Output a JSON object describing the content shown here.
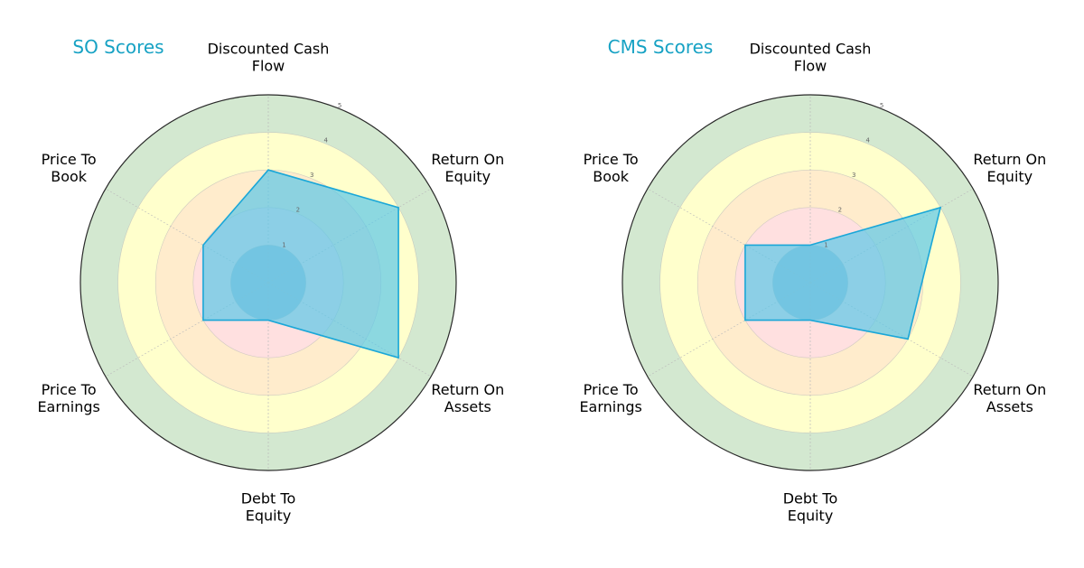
{
  "chart_data": [
    {
      "type": "radar",
      "title": "SO Scores",
      "axes": [
        "Discounted Cash Flow",
        "Return On Equity",
        "Return On Assets",
        "Debt To Equity",
        "Price To Earnings",
        "Price To Book"
      ],
      "axis_label_lines": [
        [
          "Discounted Cash",
          "Flow"
        ],
        [
          "Return On",
          "Equity"
        ],
        [
          "Return On",
          "Assets"
        ],
        [
          "Debt To",
          "Equity"
        ],
        [
          "Price To",
          "Earnings"
        ],
        [
          "Price To",
          "Book"
        ]
      ],
      "values": [
        3,
        4,
        4,
        1,
        2,
        2
      ],
      "rlim": [
        0,
        5
      ],
      "ticks": [
        "1",
        "2",
        "3",
        "4",
        "5"
      ]
    },
    {
      "type": "radar",
      "title": "CMS Scores",
      "axes": [
        "Discounted Cash Flow",
        "Return On Equity",
        "Return On Assets",
        "Debt To Equity",
        "Price To Earnings",
        "Price To Book"
      ],
      "axis_label_lines": [
        [
          "Discounted Cash",
          "Flow"
        ],
        [
          "Return On",
          "Equity"
        ],
        [
          "Return On",
          "Assets"
        ],
        [
          "Debt To",
          "Equity"
        ],
        [
          "Price To",
          "Earnings"
        ],
        [
          "Price To",
          "Book"
        ]
      ],
      "values": [
        1,
        4,
        3,
        1,
        2,
        2
      ],
      "rlim": [
        0,
        5
      ],
      "ticks": [
        "1",
        "2",
        "3",
        "4",
        "5"
      ]
    }
  ],
  "colors": {
    "title": "#17a2c4",
    "polygon_fill": "#5bc8e8",
    "polygon_stroke": "#1aa7d8",
    "band_red": "#ffe0e0",
    "band_orange": "#ffeccc",
    "band_yellow": "#ffffcc",
    "band_green": "#d3e8d0",
    "inner_disc": "#8fb4d0",
    "outer_ring": "#2a2a2a",
    "grid": "#bbbbbb"
  }
}
